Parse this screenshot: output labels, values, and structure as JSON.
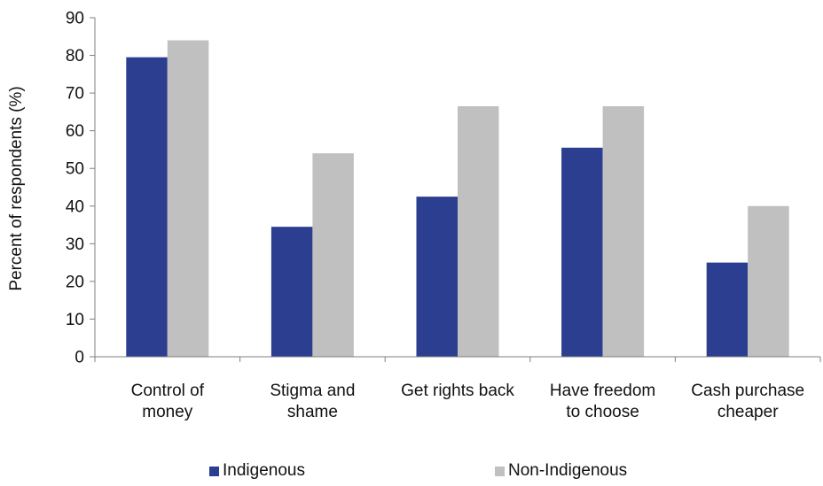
{
  "chart_data": {
    "type": "bar",
    "ylabel": "Percent of respondents  (%)",
    "xlabel": "",
    "title": "",
    "ylim": [
      0,
      90
    ],
    "yticks": [
      0,
      10,
      20,
      30,
      40,
      50,
      60,
      70,
      80,
      90
    ],
    "grid": false,
    "legend_position": "bottom",
    "categories": [
      [
        "Control of",
        "money"
      ],
      [
        "Stigma and",
        "shame"
      ],
      [
        "Get rights  back"
      ],
      [
        "Have freedom",
        "to choose"
      ],
      [
        "Cash purchase",
        "cheaper"
      ]
    ],
    "series": [
      {
        "name": "Indigenous",
        "color": "#2B3E8F",
        "values": [
          79.5,
          34.5,
          42.5,
          55.5,
          25
        ]
      },
      {
        "name": "Non-Indigenous",
        "color": "#C0C0C0",
        "values": [
          84,
          54,
          66.5,
          66.5,
          40
        ]
      }
    ]
  }
}
